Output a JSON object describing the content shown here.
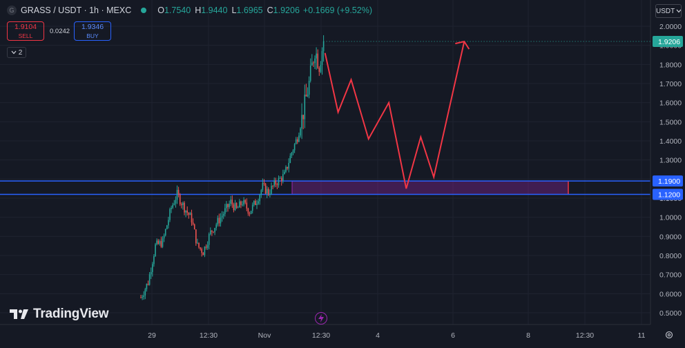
{
  "header": {
    "symbol_badge": "G",
    "title": "GRASS / USDT · 1h · MEXC",
    "ohlc": [
      {
        "k": "O",
        "v": "1.7540"
      },
      {
        "k": "H",
        "v": "1.9440"
      },
      {
        "k": "L",
        "v": "1.6965"
      },
      {
        "k": "C",
        "v": "1.9206"
      },
      {
        "k": "",
        "v": "+0.1669 (+9.52%)"
      }
    ],
    "status_color": "#26a69a"
  },
  "trade": {
    "sell_price": "1.9104",
    "sell_label": "SELL",
    "spread": "0.0242",
    "buy_price": "1.9346",
    "buy_label": "BUY"
  },
  "indicators_toggle": {
    "count": "2",
    "icon": "chevron-down-icon"
  },
  "currency_button": "USDT",
  "watermark": "TradingView",
  "chart_data": {
    "type": "candlestick",
    "timeframe": "1h",
    "y_ticks": [
      "2.0000",
      "1.9000",
      "1.8000",
      "1.7000",
      "1.6000",
      "1.5000",
      "1.4000",
      "1.3000",
      "1.2000",
      "1.1000",
      "1.0000",
      "0.9000",
      "0.8000",
      "0.7000",
      "0.6000",
      "0.5000"
    ],
    "ylim": [
      0.5,
      2.0
    ],
    "x_ticks": [
      "29",
      "12:30",
      "Nov",
      "12:30",
      "4",
      "6",
      "8",
      "12:30",
      "11"
    ],
    "last_price": "1.9206",
    "levels": [
      {
        "price": 1.19,
        "label": "1.1900",
        "color": "#2962ff"
      },
      {
        "price": 1.12,
        "label": "1.1200",
        "color": "#2962ff"
      }
    ],
    "zone": {
      "top": 1.19,
      "bottom": 1.12,
      "from_label": "Nov",
      "color": "#9c27b0"
    },
    "colors": {
      "up": "#26a69a",
      "down": "#ef5350",
      "projection": "#f23645"
    },
    "price_path_anchors": [
      {
        "t": 0,
        "p": 0.58
      },
      {
        "t": 5,
        "p": 0.66
      },
      {
        "t": 10,
        "p": 0.85
      },
      {
        "t": 15,
        "p": 0.87
      },
      {
        "t": 21,
        "p": 1.05
      },
      {
        "t": 25,
        "p": 1.12
      },
      {
        "t": 30,
        "p": 1.05
      },
      {
        "t": 35,
        "p": 0.99
      },
      {
        "t": 39,
        "p": 0.85
      },
      {
        "t": 43,
        "p": 0.82
      },
      {
        "t": 48,
        "p": 0.92
      },
      {
        "t": 56,
        "p": 1.01
      },
      {
        "t": 62,
        "p": 1.08
      },
      {
        "t": 66,
        "p": 1.04
      },
      {
        "t": 70,
        "p": 1.08
      },
      {
        "t": 75,
        "p": 1.03
      },
      {
        "t": 80,
        "p": 1.09
      },
      {
        "t": 84,
        "p": 1.16
      },
      {
        "t": 88,
        "p": 1.13
      },
      {
        "t": 93,
        "p": 1.18
      },
      {
        "t": 99,
        "p": 1.22
      },
      {
        "t": 104,
        "p": 1.34
      },
      {
        "t": 108,
        "p": 1.42
      },
      {
        "t": 112,
        "p": 1.55
      },
      {
        "t": 116,
        "p": 1.7
      },
      {
        "t": 120,
        "p": 1.88
      },
      {
        "t": 123,
        "p": 1.8
      },
      {
        "t": 126,
        "p": 1.92
      }
    ],
    "projection": [
      {
        "t": 127,
        "p": 1.86
      },
      {
        "t": 136,
        "p": 1.55
      },
      {
        "t": 145,
        "p": 1.72
      },
      {
        "t": 157,
        "p": 1.41
      },
      {
        "t": 171,
        "p": 1.6
      },
      {
        "t": 183,
        "p": 1.15
      },
      {
        "t": 193,
        "p": 1.42
      },
      {
        "t": 202,
        "p": 1.21
      },
      {
        "t": 223,
        "p": 1.92
      }
    ]
  }
}
